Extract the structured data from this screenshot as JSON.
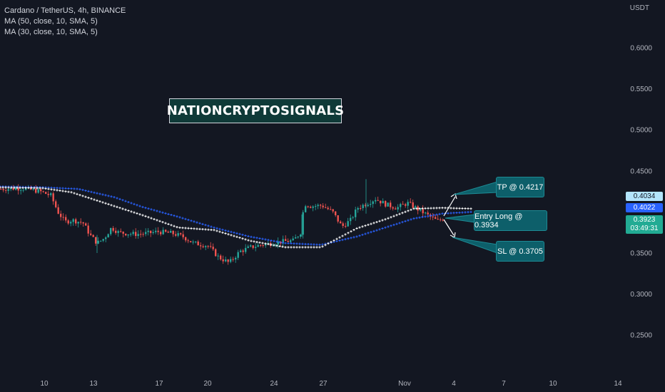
{
  "header": {
    "title": "Cardano / TetherUS, 4h, BINANCE",
    "indicator_1": "MA (50, close, 10, SMA, 5)",
    "indicator_2": "MA (30, close, 10, SMA, 5)",
    "currency": "USDT"
  },
  "watermark": "NATIONCRYPTOSIGNALS",
  "callouts": {
    "tp": "TP @ 0.4217",
    "entry": "Entry Long @ 0.3934",
    "sl": "SL @ 0.3705"
  },
  "price_tags": {
    "tag1": "0.4034",
    "tag2": "0.4022",
    "tag3_price": "0.3923",
    "tag3_timer": "03:49:31"
  },
  "colors": {
    "background": "#131722",
    "up": "#26a69a",
    "down": "#ef5350",
    "ma_blue": "#2962ff",
    "ma_white": "#ffffff",
    "axis_text": "#b2b5be"
  },
  "chart_data": {
    "type": "candlestick",
    "symbol": "Cardano / TetherUS",
    "timeframe": "4h",
    "ylim": [
      0.226,
      0.664
    ],
    "y_ticks": [
      "0.6000",
      "0.5500",
      "0.5000",
      "0.4500",
      "0.3500",
      "0.3000",
      "0.2500"
    ],
    "x_ticks": [
      "10",
      "13",
      "17",
      "20",
      "24",
      "27",
      "Nov",
      "4",
      "7",
      "10",
      "14"
    ],
    "price_path": [
      [
        0,
        0.428
      ],
      [
        30,
        0.429
      ],
      [
        55,
        0.425
      ],
      [
        70,
        0.42
      ],
      [
        80,
        0.4
      ],
      [
        90,
        0.388
      ],
      [
        100,
        0.39
      ],
      [
        115,
        0.387
      ],
      [
        125,
        0.372
      ],
      [
        135,
        0.362
      ],
      [
        145,
        0.368
      ],
      [
        155,
        0.381
      ],
      [
        165,
        0.375
      ],
      [
        175,
        0.374
      ],
      [
        190,
        0.373
      ],
      [
        205,
        0.374
      ],
      [
        220,
        0.376
      ],
      [
        240,
        0.374
      ],
      [
        255,
        0.37
      ],
      [
        270,
        0.362
      ],
      [
        290,
        0.359
      ],
      [
        305,
        0.345
      ],
      [
        320,
        0.338
      ],
      [
        335,
        0.352
      ],
      [
        350,
        0.357
      ],
      [
        365,
        0.36
      ],
      [
        380,
        0.362
      ],
      [
        395,
        0.364
      ],
      [
        410,
        0.365
      ],
      [
        420,
        0.375
      ],
      [
        425,
        0.41
      ],
      [
        435,
        0.407
      ],
      [
        450,
        0.408
      ],
      [
        465,
        0.4
      ],
      [
        478,
        0.382
      ],
      [
        490,
        0.39
      ],
      [
        500,
        0.405
      ],
      [
        512,
        0.41
      ],
      [
        525,
        0.416
      ],
      [
        540,
        0.409
      ],
      [
        555,
        0.405
      ],
      [
        570,
        0.411
      ],
      [
        585,
        0.403
      ],
      [
        600,
        0.395
      ],
      [
        612,
        0.389
      ],
      [
        620,
        0.392
      ]
    ],
    "ma_white": [
      [
        0,
        0.43
      ],
      [
        60,
        0.429
      ],
      [
        100,
        0.424
      ],
      [
        150,
        0.41
      ],
      [
        200,
        0.396
      ],
      [
        250,
        0.381
      ],
      [
        300,
        0.378
      ],
      [
        350,
        0.365
      ],
      [
        400,
        0.357
      ],
      [
        450,
        0.357
      ],
      [
        500,
        0.38
      ],
      [
        540,
        0.391
      ],
      [
        580,
        0.404
      ],
      [
        620,
        0.405
      ],
      [
        660,
        0.404
      ]
    ],
    "ma_blue": [
      [
        0,
        0.431
      ],
      [
        60,
        0.43
      ],
      [
        110,
        0.428
      ],
      [
        160,
        0.418
      ],
      [
        200,
        0.406
      ],
      [
        250,
        0.394
      ],
      [
        300,
        0.381
      ],
      [
        350,
        0.37
      ],
      [
        400,
        0.362
      ],
      [
        450,
        0.36
      ],
      [
        500,
        0.37
      ],
      [
        540,
        0.381
      ],
      [
        580,
        0.392
      ],
      [
        620,
        0.398
      ],
      [
        660,
        0.4
      ]
    ]
  }
}
